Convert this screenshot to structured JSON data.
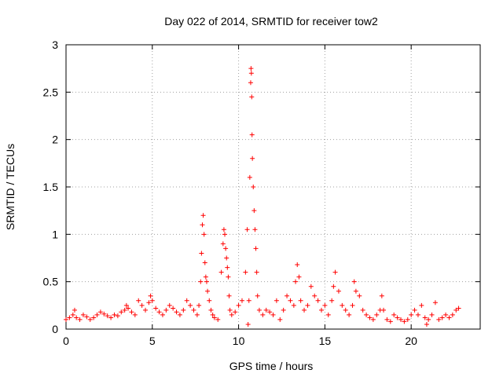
{
  "chart_data": {
    "type": "scatter",
    "title": "Day 022 of 2014, SRMTID for receiver tow2",
    "xlabel": "GPS time / hours",
    "ylabel": "SRMTID / TECUs",
    "xlim": [
      0,
      24
    ],
    "ylim": [
      0,
      3
    ],
    "xticks": [
      0,
      5,
      10,
      15,
      20
    ],
    "xtick_labels": [
      "0",
      "5",
      "10",
      "15",
      "20"
    ],
    "yticks": [
      0,
      0.5,
      1,
      1.5,
      2,
      2.5,
      3
    ],
    "ytick_labels": [
      "0",
      "0.5",
      "1",
      "1.5",
      "2",
      "2.5",
      "3"
    ],
    "grid": true,
    "marker": "+",
    "series": [
      {
        "name": "SRMTID",
        "color": "#ff0000",
        "x": [
          0.0,
          0.2,
          0.4,
          0.5,
          0.6,
          0.8,
          1.0,
          1.2,
          1.4,
          1.6,
          1.8,
          2.0,
          2.2,
          2.4,
          2.6,
          2.8,
          3.0,
          3.2,
          3.4,
          3.5,
          3.6,
          3.8,
          4.0,
          4.2,
          4.4,
          4.6,
          4.8,
          4.9,
          5.0,
          5.2,
          5.4,
          5.6,
          5.8,
          6.0,
          6.2,
          6.4,
          6.6,
          6.8,
          7.0,
          7.2,
          7.4,
          7.6,
          7.7,
          7.8,
          7.85,
          7.9,
          7.95,
          8.0,
          8.05,
          8.1,
          8.15,
          8.2,
          8.3,
          8.4,
          8.5,
          8.6,
          8.8,
          9.0,
          9.1,
          9.15,
          9.2,
          9.25,
          9.3,
          9.35,
          9.4,
          9.45,
          9.5,
          9.6,
          9.8,
          10.0,
          10.2,
          10.4,
          10.5,
          10.55,
          10.6,
          10.65,
          10.7,
          10.72,
          10.74,
          10.76,
          10.78,
          10.8,
          10.85,
          10.9,
          10.95,
          11.0,
          11.05,
          11.1,
          11.2,
          11.4,
          11.6,
          11.8,
          12.0,
          12.2,
          12.4,
          12.6,
          12.8,
          13.0,
          13.2,
          13.3,
          13.4,
          13.5,
          13.6,
          13.8,
          14.0,
          14.2,
          14.4,
          14.6,
          14.8,
          15.0,
          15.2,
          15.4,
          15.5,
          15.6,
          15.8,
          16.0,
          16.2,
          16.4,
          16.6,
          16.7,
          16.8,
          17.0,
          17.2,
          17.4,
          17.6,
          17.8,
          18.0,
          18.2,
          18.3,
          18.4,
          18.6,
          18.8,
          19.0,
          19.2,
          19.4,
          19.6,
          19.8,
          20.0,
          20.2,
          20.4,
          20.6,
          20.8,
          20.9,
          21.0,
          21.2,
          21.4,
          21.6,
          21.8,
          22.0,
          22.2,
          22.4,
          22.6,
          22.75
        ],
        "y": [
          0.1,
          0.12,
          0.15,
          0.2,
          0.12,
          0.1,
          0.15,
          0.13,
          0.1,
          0.12,
          0.15,
          0.18,
          0.16,
          0.14,
          0.12,
          0.15,
          0.14,
          0.18,
          0.2,
          0.25,
          0.22,
          0.18,
          0.15,
          0.3,
          0.25,
          0.2,
          0.28,
          0.35,
          0.3,
          0.22,
          0.18,
          0.15,
          0.2,
          0.25,
          0.22,
          0.18,
          0.15,
          0.2,
          0.3,
          0.25,
          0.2,
          0.15,
          0.25,
          0.5,
          0.8,
          1.1,
          1.2,
          1.0,
          0.7,
          0.55,
          0.5,
          0.4,
          0.3,
          0.2,
          0.15,
          0.12,
          0.1,
          0.6,
          0.9,
          1.05,
          1.0,
          0.85,
          0.75,
          0.65,
          0.55,
          0.35,
          0.2,
          0.15,
          0.18,
          0.25,
          0.3,
          0.6,
          1.05,
          0.05,
          0.3,
          1.6,
          2.6,
          2.75,
          2.7,
          2.45,
          2.05,
          1.8,
          1.5,
          1.25,
          1.05,
          0.85,
          0.6,
          0.35,
          0.2,
          0.15,
          0.2,
          0.18,
          0.15,
          0.3,
          0.1,
          0.2,
          0.35,
          0.3,
          0.25,
          0.5,
          0.68,
          0.55,
          0.3,
          0.2,
          0.25,
          0.45,
          0.35,
          0.3,
          0.2,
          0.25,
          0.15,
          0.3,
          0.45,
          0.6,
          0.4,
          0.25,
          0.2,
          0.15,
          0.25,
          0.5,
          0.4,
          0.35,
          0.2,
          0.15,
          0.12,
          0.1,
          0.15,
          0.2,
          0.35,
          0.2,
          0.1,
          0.08,
          0.15,
          0.12,
          0.1,
          0.08,
          0.1,
          0.15,
          0.2,
          0.15,
          0.25,
          0.12,
          0.05,
          0.1,
          0.15,
          0.28,
          0.1,
          0.12,
          0.15,
          0.12,
          0.15,
          0.2,
          0.22
        ]
      }
    ]
  }
}
